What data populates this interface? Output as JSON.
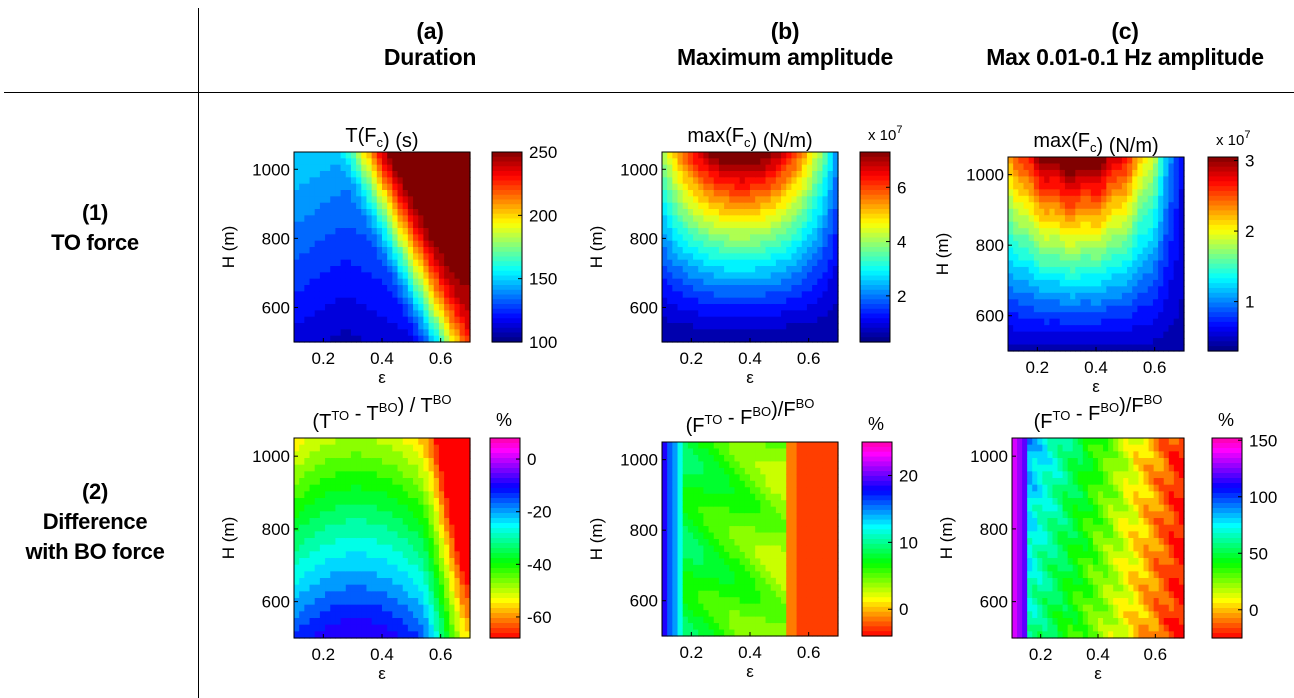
{
  "header": {
    "col_a": {
      "letter": "(a)",
      "title": "Duration"
    },
    "col_b": {
      "letter": "(b)",
      "title": "Maximum amplitude"
    },
    "col_c": {
      "letter": "(c)",
      "title": "Max 0.01-0.1 Hz amplitude"
    }
  },
  "rows": {
    "row1": {
      "number": "(1)",
      "label": "TO force"
    },
    "row2": {
      "number": "(2)",
      "label_line1": "Difference",
      "label_line2": "with BO force"
    }
  },
  "chart_data": [
    {
      "id": "a1",
      "type": "heatmap",
      "title": "T(F_c) (s)",
      "xlabel": "ε",
      "ylabel": "H (m)",
      "xlim": [
        0.1,
        0.7
      ],
      "ylim": [
        500,
        1050
      ],
      "xticks": [
        0.2,
        0.4,
        0.6
      ],
      "yticks": [
        600,
        800,
        1000
      ],
      "colorbar": {
        "range": [
          100,
          250
        ],
        "ticks": [
          100,
          150,
          200,
          250
        ],
        "label": "",
        "multiplier": "",
        "colormap": "jet"
      },
      "field": "duration"
    },
    {
      "id": "b1",
      "type": "heatmap",
      "title": "max(F_c) (N/m)",
      "xlabel": "ε",
      "ylabel": "H (m)",
      "xlim": [
        0.1,
        0.7
      ],
      "ylim": [
        500,
        1050
      ],
      "xticks": [
        0.2,
        0.4,
        0.6
      ],
      "yticks": [
        600,
        800,
        1000
      ],
      "colorbar": {
        "range": [
          0.3,
          7.3
        ],
        "ticks": [
          2,
          4,
          6
        ],
        "label": "",
        "multiplier": "x 10^7",
        "colormap": "jet"
      },
      "field": "maxamp"
    },
    {
      "id": "c1",
      "type": "heatmap",
      "title": "max(F_c) (N/m)",
      "xlabel": "ε",
      "ylabel": "H (m)",
      "xlim": [
        0.1,
        0.7
      ],
      "ylim": [
        500,
        1050
      ],
      "xticks": [
        0.2,
        0.4,
        0.6
      ],
      "yticks": [
        600,
        800,
        1000
      ],
      "colorbar": {
        "range": [
          0.3,
          3.05
        ],
        "ticks": [
          1,
          2,
          3
        ],
        "label": "",
        "multiplier": "x 10^7",
        "colormap": "jet"
      },
      "field": "lowamp"
    },
    {
      "id": "a2",
      "type": "heatmap",
      "title": "(T^TO - T^BO) / T^BO",
      "xlabel": "ε",
      "ylabel": "H (m)",
      "xlim": [
        0.1,
        0.7
      ],
      "ylim": [
        500,
        1050
      ],
      "xticks": [
        0.2,
        0.4,
        0.6
      ],
      "yticks": [
        600,
        800,
        1000
      ],
      "colorbar": {
        "range": [
          -68,
          8
        ],
        "ticks": [
          -60,
          -40,
          -20,
          0
        ],
        "label": "%",
        "multiplier": "",
        "colormap": "hsv"
      },
      "field": "durdiff"
    },
    {
      "id": "b2",
      "type": "heatmap",
      "title": "(F^TO - F^BO)/F^BO",
      "xlabel": "ε",
      "ylabel": "H (m)",
      "xlim": [
        0.1,
        0.7
      ],
      "ylim": [
        500,
        1050
      ],
      "xticks": [
        0.2,
        0.4,
        0.6
      ],
      "yticks": [
        600,
        800,
        1000
      ],
      "colorbar": {
        "range": [
          -4,
          25
        ],
        "ticks": [
          0,
          10,
          20
        ],
        "label": "%",
        "multiplier": "",
        "colormap": "hsv"
      },
      "field": "ampdiff"
    },
    {
      "id": "c2",
      "type": "heatmap",
      "title": "(F^TO - F^BO)/F^BO",
      "xlabel": "ε",
      "ylabel": "H (m)",
      "xlim": [
        0.1,
        0.7
      ],
      "ylim": [
        500,
        1050
      ],
      "xticks": [
        0.2,
        0.4,
        0.6
      ],
      "yticks": [
        600,
        800,
        1000
      ],
      "colorbar": {
        "range": [
          -25,
          152
        ],
        "ticks": [
          0,
          50,
          100,
          150
        ],
        "label": "%",
        "multiplier": "",
        "colormap": "hsv"
      },
      "field": "lowdiff"
    }
  ]
}
